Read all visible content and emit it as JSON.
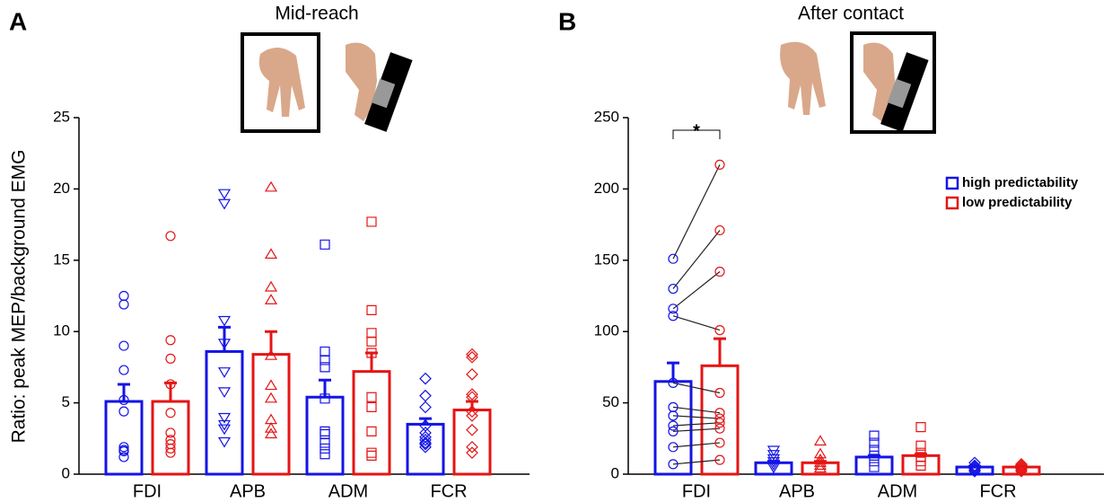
{
  "chart_data": [
    {
      "type": "bar",
      "panel": "A",
      "title": "Mid-reach",
      "ylabel": "Ratio: peak MEP/background EMG",
      "categories": [
        "FDI",
        "APB",
        "ADM",
        "FCR"
      ],
      "ylim": [
        0,
        25
      ],
      "yticks": [
        0,
        5,
        10,
        15,
        20,
        25
      ],
      "series": [
        {
          "color": "#1414e6",
          "values": [
            5.1,
            8.6,
            5.4,
            3.5
          ],
          "errors": [
            1.2,
            1.7,
            1.2,
            0.4
          ],
          "points": [
            [
              12.5,
              11.9,
              9.0,
              7.3,
              5.2,
              4.4,
              1.9,
              1.7,
              1.6,
              1.2
            ],
            [
              19.7,
              19.0,
              10.8,
              9.2,
              7.2,
              5.8,
              4.0,
              3.5,
              3.2,
              2.3
            ],
            [
              16.1,
              8.6,
              8.0,
              7.5,
              5.3,
              3.0,
              2.8,
              2.2,
              1.8,
              1.4
            ],
            [
              6.7,
              5.5,
              4.7,
              3.4,
              2.9,
              2.6,
              2.4,
              2.2,
              2.1,
              1.9
            ]
          ]
        },
        {
          "color": "#e61414",
          "values": [
            5.1,
            8.4,
            7.2,
            4.5
          ],
          "errors": [
            1.3,
            1.6,
            1.3,
            0.6
          ],
          "points": [
            [
              16.7,
              9.4,
              8.1,
              6.3,
              4.3,
              2.9,
              2.4,
              2.1,
              1.8,
              1.5
            ],
            [
              20.1,
              15.4,
              13.1,
              12.2,
              8.3,
              6.2,
              5.3,
              3.8,
              3.2,
              2.8
            ],
            [
              17.7,
              11.5,
              9.9,
              9.3,
              8.5,
              5.4,
              4.7,
              3.0,
              1.5,
              1.3
            ],
            [
              8.4,
              8.2,
              7.0,
              5.6,
              5.4,
              4.4,
              4.1,
              3.1,
              1.9,
              1.5
            ]
          ]
        }
      ]
    },
    {
      "type": "bar",
      "panel": "B",
      "title": "After contact",
      "categories": [
        "FDI",
        "APB",
        "ADM",
        "FCR"
      ],
      "ylim": [
        0,
        250
      ],
      "yticks": [
        0,
        50,
        100,
        150,
        200,
        250
      ],
      "legend": "upper right",
      "paired": [
        0
      ],
      "annotations": [
        {
          "text": "*",
          "category": 0
        }
      ],
      "series": [
        {
          "name": "high predictability",
          "color": "#1414e6",
          "values": [
            65,
            8,
            12,
            5
          ],
          "errors": [
            13,
            1,
            1,
            0.5
          ],
          "points": [
            [
              151,
              130,
              116,
              111,
              64,
              47,
              41,
              34,
              30,
              19,
              7
            ],
            [
              17,
              14,
              11,
              9,
              7,
              5
            ],
            [
              27,
              22,
              17,
              13,
              9,
              5
            ],
            [
              8,
              6,
              5,
              4,
              3,
              2
            ]
          ]
        },
        {
          "name": "low predictability",
          "color": "#e61414",
          "values": [
            76,
            8,
            13,
            5
          ],
          "errors": [
            19,
            1,
            1,
            0.5
          ],
          "points": [
            [
              217,
              171,
              142,
              101,
              57,
              43,
              39,
              36,
              32,
              22,
              10
            ],
            [
              23,
              14,
              10,
              8,
              6,
              4
            ],
            [
              33,
              20,
              15,
              12,
              9,
              6
            ],
            [
              7,
              6,
              5,
              4,
              3,
              2
            ]
          ]
        }
      ]
    }
  ]
}
